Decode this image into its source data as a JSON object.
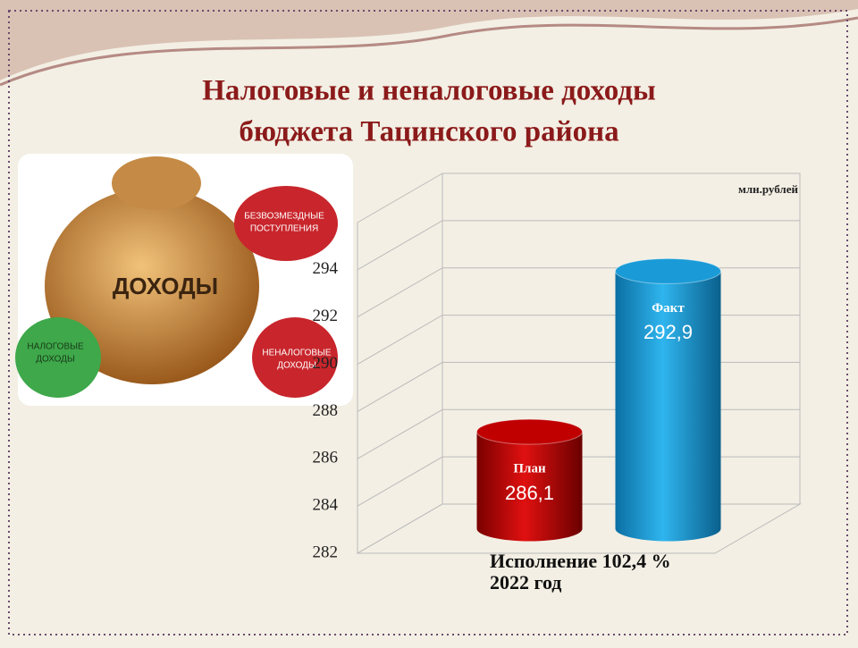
{
  "chart_data": {
    "type": "bar3d",
    "title_lines": [
      "Налоговые и неналоговые доходы",
      "бюджета Тацинского района"
    ],
    "unit_label": "млн.рублей",
    "categories": [
      "План",
      "Факт"
    ],
    "values": [
      286.1,
      292.9
    ],
    "value_labels": [
      "286,1",
      "292,9"
    ],
    "colors": [
      "#c00000",
      "#1a9bd7"
    ],
    "ylim": [
      282,
      296
    ],
    "yticks": [
      282,
      284,
      286,
      288,
      290,
      292,
      294
    ],
    "grid": true,
    "annotations": [
      "Исполнение 102,4 %",
      "2022 год"
    ]
  },
  "illustration": {
    "labels": [
      "ДОХОДЫ",
      "БЕЗВОЗМЕЗДНЫЕ",
      "ПОСТУПЛЕНИЯ",
      "НАЛОГОВЫЕ",
      "ДОХОДЫ",
      "НЕНАЛОГОВЫЕ",
      "ДОХОДЫ"
    ]
  }
}
